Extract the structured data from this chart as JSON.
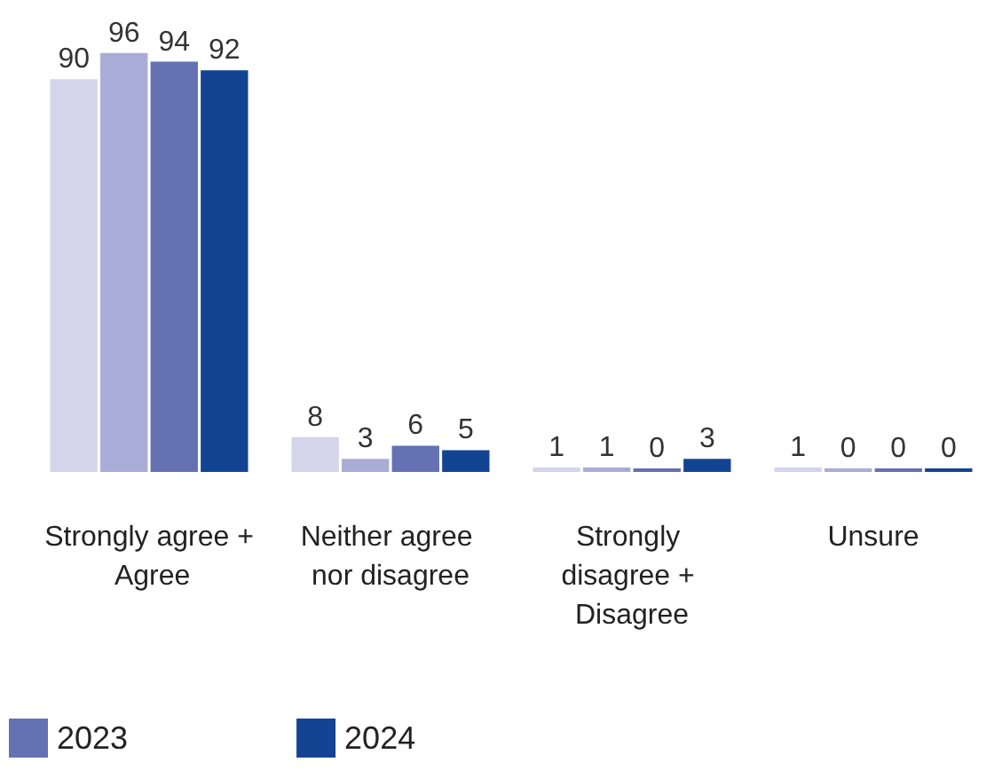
{
  "chart_data": {
    "type": "bar",
    "categories": [
      "Strongly agree + Agree",
      "Neither agree nor disagree",
      "Strongly disagree + Disagree",
      "Unsure"
    ],
    "series": [
      {
        "color": "#d4d5eb",
        "values": [
          90,
          8,
          1,
          1
        ]
      },
      {
        "color": "#a8acd6",
        "values": [
          96,
          3,
          1,
          0
        ]
      },
      {
        "name": "2023",
        "color": "#6471b3",
        "values": [
          94,
          6,
          0,
          0
        ]
      },
      {
        "name": "2024",
        "color": "#134494",
        "values": [
          92,
          5,
          3,
          0
        ]
      }
    ],
    "data_labels": true,
    "legend": "bottom left"
  }
}
